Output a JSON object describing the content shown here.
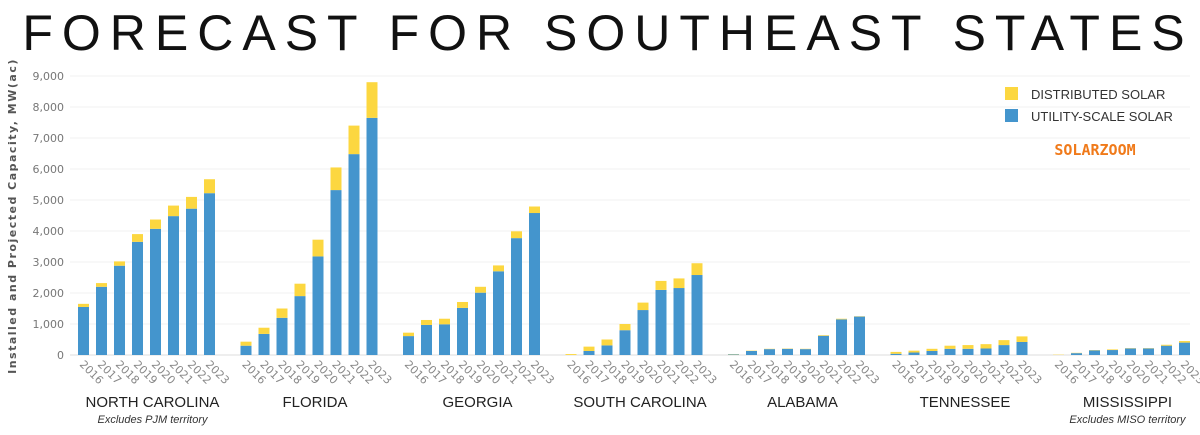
{
  "chart_data": {
    "type": "bar",
    "stacked": true,
    "title": "FORECAST FOR SOUTHEAST STATES",
    "ylabel": "Installed and Projected Capacity, MW(ac)",
    "ylim": [
      0,
      9000
    ],
    "yticks": [
      "0",
      "1,000",
      "2,000",
      "3,000",
      "4,000",
      "5,000",
      "6,000",
      "7,000",
      "8,000",
      "9,000"
    ],
    "ytick_values": [
      0,
      1000,
      2000,
      3000,
      4000,
      5000,
      6000,
      7000,
      8000,
      9000
    ],
    "grid": true,
    "legend_position": "top-right",
    "years": [
      "2016",
      "2017",
      "2018",
      "2019",
      "2020",
      "2021",
      "2022",
      "2023"
    ],
    "colors": {
      "distributed": "#fcd740",
      "utility": "#4495cd"
    },
    "series_names": {
      "distributed": "DISTRIBUTED SOLAR",
      "utility": "UTILITY-SCALE SOLAR"
    },
    "groups": [
      {
        "state": "NORTH CAROLINA",
        "note": "Excludes PJM territory",
        "utility": [
          1550,
          2200,
          2880,
          3650,
          4070,
          4480,
          4720,
          5220
        ],
        "distributed": [
          100,
          120,
          140,
          250,
          300,
          340,
          380,
          450
        ]
      },
      {
        "state": "FLORIDA",
        "note": "",
        "utility": [
          300,
          680,
          1200,
          1900,
          3180,
          5320,
          6480,
          7650
        ],
        "distributed": [
          130,
          200,
          300,
          400,
          540,
          730,
          920,
          1150
        ]
      },
      {
        "state": "GEORGIA",
        "note": "",
        "utility": [
          610,
          970,
          990,
          1520,
          2010,
          2700,
          3770,
          4580
        ],
        "distributed": [
          110,
          160,
          180,
          190,
          190,
          190,
          220,
          210
        ]
      },
      {
        "state": "SOUTH CAROLINA",
        "note": "",
        "utility": [
          0,
          130,
          310,
          800,
          1450,
          2100,
          2160,
          2580
        ],
        "distributed": [
          30,
          140,
          190,
          200,
          240,
          290,
          310,
          380
        ]
      },
      {
        "state": "ALABAMA",
        "note": "",
        "utility": [
          20,
          130,
          190,
          200,
          190,
          620,
          1150,
          1240
        ],
        "distributed": [
          10,
          10,
          10,
          10,
          10,
          20,
          20,
          10
        ]
      },
      {
        "state": "TENNESSEE",
        "note": "",
        "utility": [
          40,
          80,
          130,
          200,
          200,
          210,
          320,
          420
        ],
        "distributed": [
          60,
          60,
          70,
          100,
          120,
          140,
          160,
          180
        ]
      },
      {
        "state": "MISSISSIPPI",
        "note": "Excludes MISO territory",
        "utility": [
          0,
          60,
          150,
          160,
          210,
          210,
          300,
          400
        ],
        "distributed": [
          10,
          10,
          10,
          20,
          10,
          10,
          30,
          50
        ]
      }
    ]
  },
  "watermark": "SOLARZOOM"
}
